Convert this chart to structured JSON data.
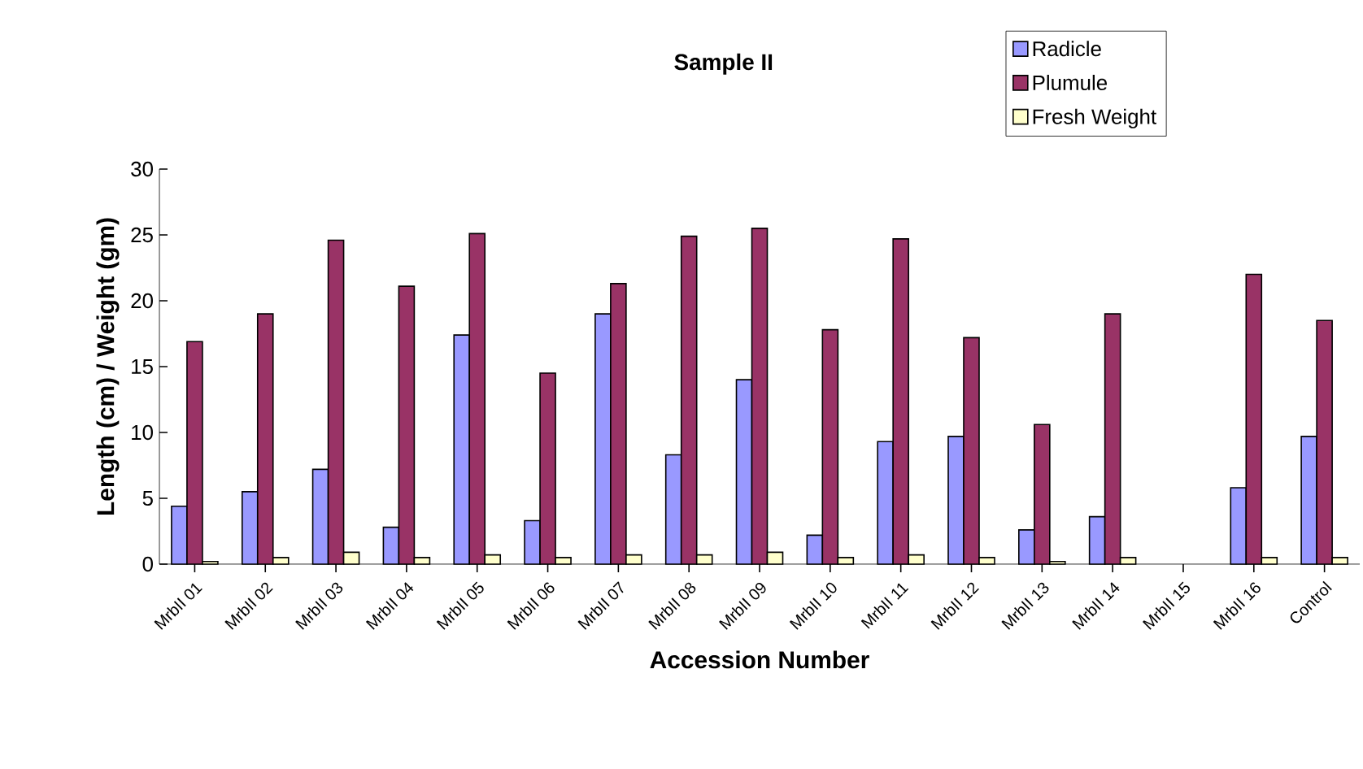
{
  "chart_data": {
    "type": "bar",
    "title": "Sample II",
    "xlabel": "Accession Number",
    "ylabel": "Length (cm) / Weight (gm)",
    "categories": [
      "MrbII 01",
      "MrbII 02",
      "MrbII 03",
      "MrbII 04",
      "MrbII 05",
      "MrbII 06",
      "MrbII 07",
      "MrbII 08",
      "MrbII 09",
      "MrbII 10",
      "MrbII 11",
      "MrbII 12",
      "MrbII 13",
      "MrbII 14",
      "MrbII 15",
      "MrbII 16",
      "Control"
    ],
    "series": [
      {
        "name": "Radicle",
        "color": "#9999ff",
        "values": [
          4.4,
          5.5,
          7.2,
          2.8,
          17.4,
          3.3,
          19.0,
          8.3,
          14.0,
          2.2,
          9.3,
          9.7,
          2.6,
          3.6,
          null,
          5.8,
          9.7
        ]
      },
      {
        "name": "Plumule",
        "color": "#993366",
        "values": [
          16.9,
          19.0,
          24.6,
          21.1,
          25.1,
          14.5,
          21.3,
          24.9,
          25.5,
          17.8,
          24.7,
          17.2,
          10.6,
          19.0,
          null,
          22.0,
          18.5
        ]
      },
      {
        "name": "Fresh Weight",
        "color": "#ffffcc",
        "values": [
          0.2,
          0.5,
          0.9,
          0.5,
          0.7,
          0.5,
          0.7,
          0.7,
          0.9,
          0.5,
          0.7,
          0.5,
          0.2,
          0.5,
          null,
          0.5,
          0.5
        ]
      }
    ],
    "ylim": [
      0,
      30
    ],
    "yticks": [
      0,
      5,
      10,
      15,
      20,
      25,
      30
    ],
    "grid": false,
    "legend": "top right"
  }
}
